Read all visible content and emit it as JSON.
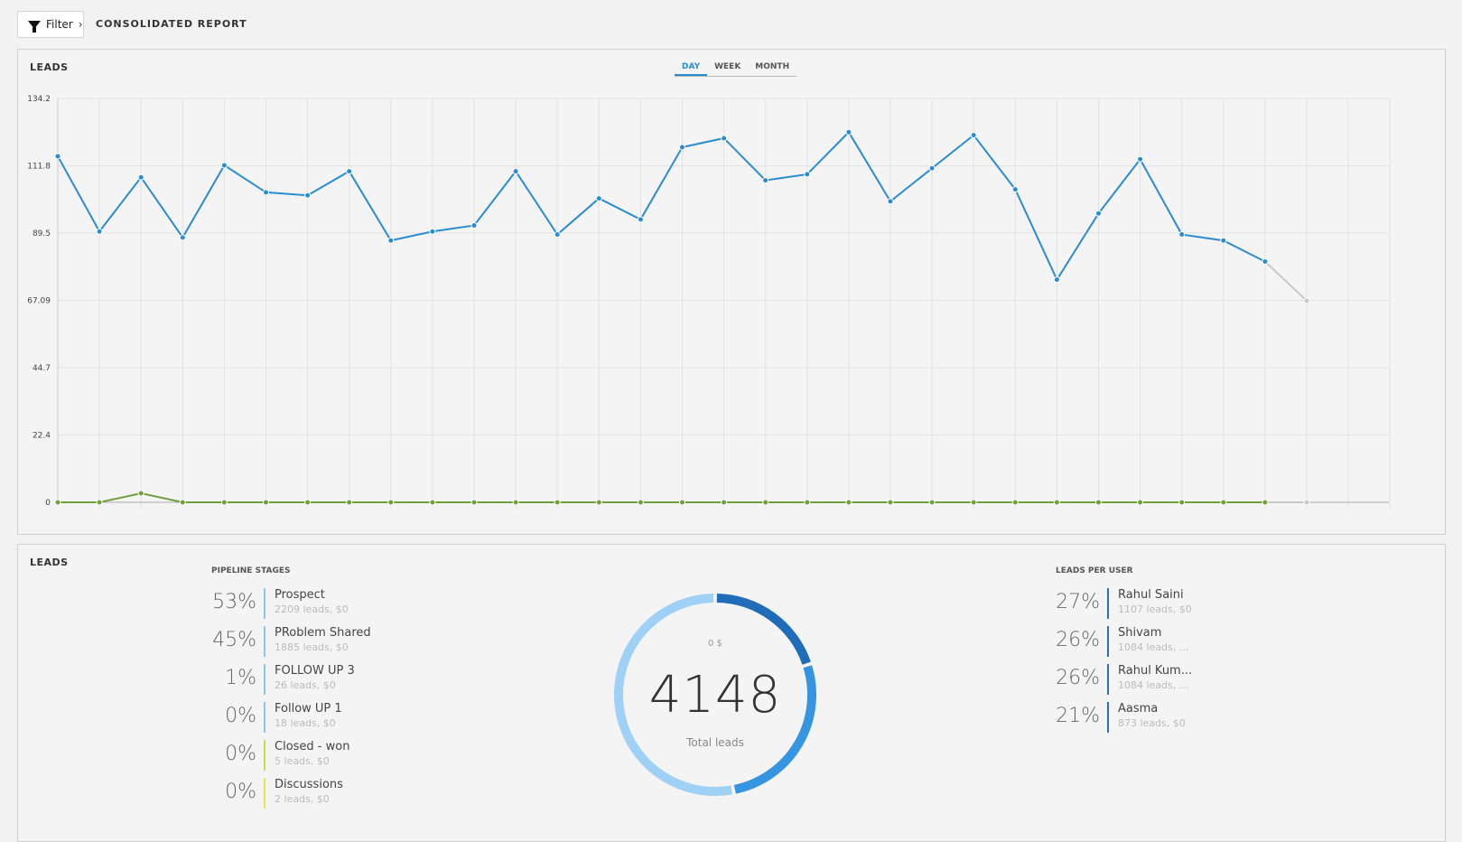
{
  "topbar": {
    "filter_label": "Filter",
    "filter_chevron": "›",
    "report_title": "CONSOLIDATED REPORT"
  },
  "leads_chart_panel": {
    "title": "LEADS",
    "tabs": [
      {
        "label": "DAY",
        "active": true
      },
      {
        "label": "WEEK",
        "active": false
      },
      {
        "label": "MONTH",
        "active": false
      }
    ]
  },
  "chart_data": {
    "type": "line",
    "ylim": [
      0,
      134.2
    ],
    "y_ticks": [
      "0",
      "22.4",
      "44.7",
      "67.09",
      "89.5",
      "111.8",
      "134.2"
    ],
    "x_count": 33,
    "series": [
      {
        "color": "#2a8cd0",
        "values": [
          115,
          90,
          108,
          88,
          112,
          103,
          102,
          110,
          87,
          90,
          92,
          110,
          89,
          101,
          94,
          118,
          121,
          107,
          109,
          123,
          100,
          111,
          122,
          104,
          74,
          96,
          114,
          89,
          87,
          80,
          67
        ]
      },
      {
        "color": "#6fa03c",
        "values": [
          0,
          0,
          3,
          0,
          0,
          0,
          0,
          0,
          0,
          0,
          0,
          0,
          0,
          0,
          0,
          0,
          0,
          0,
          0,
          0,
          0,
          0,
          0,
          0,
          0,
          0,
          0,
          0,
          0,
          0,
          0
        ]
      }
    ],
    "last_segment_color": "#c8c8c8"
  },
  "leads_summary_panel": {
    "title": "LEADS",
    "pipeline": {
      "heading": "PIPELINE STAGES",
      "items": [
        {
          "pct": "53%",
          "name": "Prospect",
          "sub": "2209 leads, $0",
          "color": "#8ec4ef"
        },
        {
          "pct": "45%",
          "name": "PRoblem Shared",
          "sub": "1885 leads, $0",
          "color": "#8ec4ef"
        },
        {
          "pct": "1%",
          "name": "FOLLOW UP 3",
          "sub": "26 leads, $0",
          "color": "#8ec4ef"
        },
        {
          "pct": "0%",
          "name": "Follow UP 1",
          "sub": "18 leads, $0",
          "color": "#8ec4ef"
        },
        {
          "pct": "0%",
          "name": "Closed - won",
          "sub": "5 leads, $0",
          "color": "#c5dc4a"
        },
        {
          "pct": "0%",
          "name": "Discussions",
          "sub": "2 leads, $0",
          "color": "#e8e25a"
        }
      ]
    },
    "donut": {
      "amount": "0 $",
      "total": "4148",
      "label": "Total leads",
      "segments": [
        {
          "fraction": 0.53,
          "color": "#9fd0f6"
        },
        {
          "fraction": 0.27,
          "color": "#3595e0"
        },
        {
          "fraction": 0.2,
          "color": "#1f6db8"
        }
      ]
    },
    "per_user": {
      "heading": "LEADS PER USER",
      "items": [
        {
          "pct": "27%",
          "name": "Rahul Saini",
          "sub": "1107 leads, $0",
          "color": "#2a6db8"
        },
        {
          "pct": "26%",
          "name": "Shivam",
          "sub": "1084 leads, ...",
          "color": "#2a6db8"
        },
        {
          "pct": "26%",
          "name": "Rahul Kum...",
          "sub": "1084 leads, ...",
          "color": "#2a6db8"
        },
        {
          "pct": "21%",
          "name": "Aasma",
          "sub": "873 leads, $0",
          "color": "#2a6db8"
        }
      ]
    }
  }
}
